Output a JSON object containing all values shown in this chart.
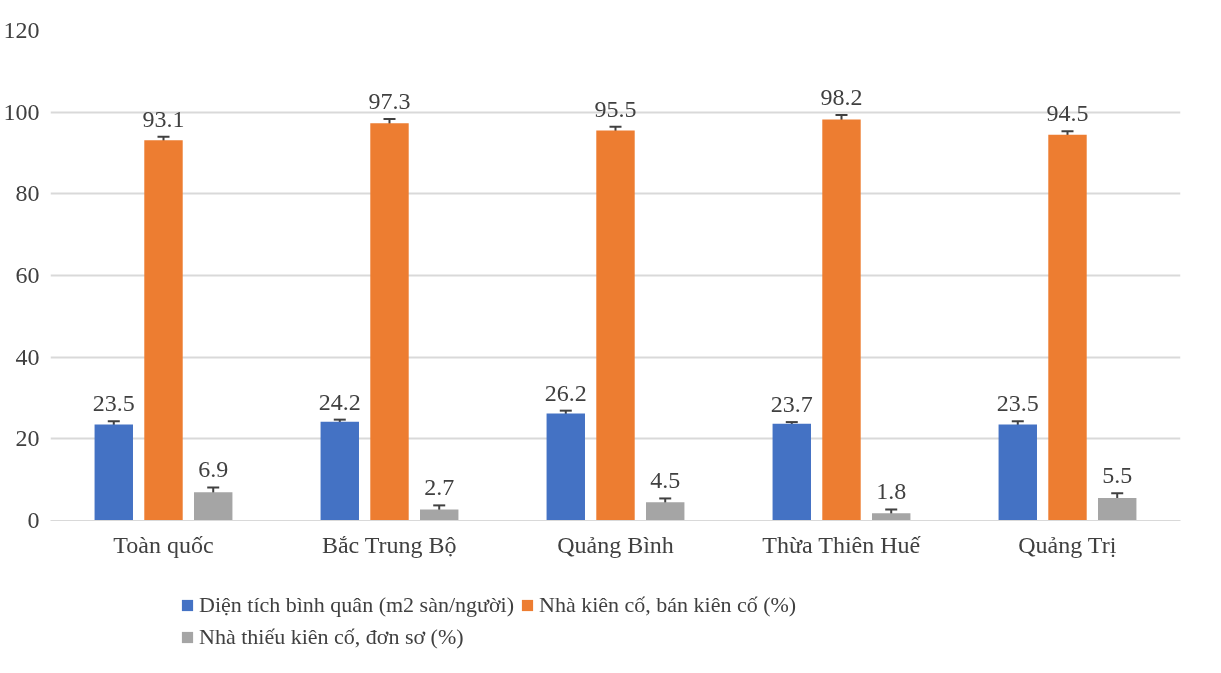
{
  "chart_data": {
    "type": "bar",
    "categories": [
      "Toàn quốc",
      "Bắc Trung Bộ",
      "Quảng Bình",
      "Thừa Thiên Huế",
      "Quảng Trị"
    ],
    "series": [
      {
        "name": "Diện tích bình quân (m2 sàn/người)",
        "color": "#4472c4",
        "values": [
          23.5,
          24.2,
          26.2,
          23.7,
          23.5
        ],
        "errors": [
          0.8,
          0.5,
          0.7,
          0.4,
          0.8
        ]
      },
      {
        "name": "Nhà kiên cố, bán kiên cố (%)",
        "color": "#ed7d31",
        "values": [
          93.1,
          97.3,
          95.5,
          98.2,
          94.5
        ],
        "errors": [
          0.9,
          1.0,
          0.9,
          1.1,
          0.8
        ]
      },
      {
        "name": "Nhà thiếu kiên cố, đơn sơ (%)",
        "color": "#a5a5a5",
        "values": [
          6.9,
          2.7,
          4.5,
          1.8,
          5.5
        ],
        "errors": [
          1.2,
          1.0,
          0.9,
          0.9,
          1.2
        ]
      }
    ],
    "ylim": [
      0,
      120
    ],
    "yticks": [
      0,
      20,
      40,
      60,
      80,
      100,
      120
    ],
    "grid": "y",
    "legend": "bottom",
    "data_labels": true
  }
}
